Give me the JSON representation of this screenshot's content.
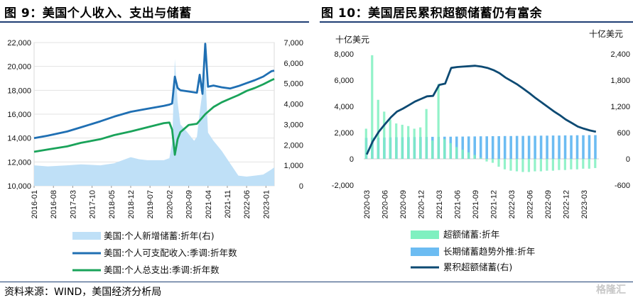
{
  "left": {
    "title": "图 9：美国个人收入、支出与储蓄",
    "left_ticks": [
      "22,000",
      "20,000",
      "18,000",
      "16,000",
      "14,000",
      "12,000",
      "10,000"
    ],
    "right_ticks": [
      "7,000",
      "6,000",
      "5,000",
      "4,000",
      "3,000",
      "2,000",
      "1,000",
      "0"
    ],
    "x_ticks": [
      "2016-01",
      "2016-08",
      "2017-03",
      "2017-10",
      "2018-05",
      "2018-12",
      "2019-07",
      "2020-02",
      "2020-09",
      "2021-04",
      "2021-11",
      "2022-06",
      "2023-01"
    ],
    "legend": [
      "美国:个人新增储蓄:折年(右)",
      "美国:个人可支配收入:季调:折年数",
      "美国:个人总支出:季调:折年数"
    ],
    "colors": {
      "savings": "#bfe0f7",
      "income": "#1f6fb3",
      "spending": "#1aa35a"
    }
  },
  "right": {
    "title": "图 10：美国居民累积超额储蓄仍有富余",
    "left_unit": "十亿美元",
    "right_unit": "十亿美元",
    "left_ticks": [
      "8,000",
      "6,000",
      "4,000",
      "2,000",
      "0",
      "-2,000"
    ],
    "right_ticks": [
      "2,400",
      "1,800",
      "1,200",
      "600",
      "0",
      "-600"
    ],
    "x_ticks": [
      "2020-03",
      "2020-06",
      "2020-09",
      "2020-12",
      "2021-03",
      "2021-06",
      "2021-09",
      "2021-12",
      "2022-03",
      "2022-06",
      "2022-09",
      "2022-12",
      "2023-03"
    ],
    "legend": [
      "超额储蓄:折年",
      "长期储蓄趋势外推:折年",
      "累积超额储蓄(右)"
    ],
    "colors": {
      "excess": "#7ff0c0",
      "trend": "#6cbcf2",
      "cum": "#0d4a73"
    }
  },
  "source": "资料来源：WIND，美国经济分析局",
  "watermark": "格隆汇",
  "chart_data": [
    {
      "type": "line",
      "title": "图 9：美国个人收入、支出与储蓄",
      "ylim": [
        10000,
        22000
      ],
      "y2lim": [
        0,
        7000
      ],
      "x_range": [
        "2016-01",
        "2023-04"
      ],
      "series": [
        {
          "name": "美国:个人新增储蓄:折年(右)",
          "type": "area",
          "axis": "right",
          "x": [
            "2016-01",
            "2016-06",
            "2017-01",
            "2017-06",
            "2018-01",
            "2018-06",
            "2018-12",
            "2019-03",
            "2019-06",
            "2019-12",
            "2020-02",
            "2020-03",
            "2020-04",
            "2020-05",
            "2020-06",
            "2020-08",
            "2020-11",
            "2020-12",
            "2021-01",
            "2021-03",
            "2021-04",
            "2021-06",
            "2021-09",
            "2021-12",
            "2022-03",
            "2022-06",
            "2022-09",
            "2022-12",
            "2023-03",
            "2023-04"
          ],
          "values": [
            1000,
            950,
            1000,
            1050,
            1000,
            1100,
            1400,
            1300,
            1250,
            1250,
            1350,
            2100,
            6200,
            4100,
            3000,
            2700,
            2200,
            2400,
            3600,
            5600,
            2600,
            2200,
            1700,
            1100,
            500,
            450,
            500,
            550,
            800,
            900
          ]
        },
        {
          "name": "美国:个人可支配收入:季调:折年数",
          "type": "line",
          "axis": "left",
          "x": [
            "2016-01",
            "2016-06",
            "2017-01",
            "2017-06",
            "2018-01",
            "2018-06",
            "2018-12",
            "2019-06",
            "2019-12",
            "2020-02",
            "2020-03",
            "2020-04",
            "2020-05",
            "2020-06",
            "2020-09",
            "2020-12",
            "2021-01",
            "2021-02",
            "2021-03",
            "2021-04",
            "2021-06",
            "2021-09",
            "2021-12",
            "2022-03",
            "2022-06",
            "2022-09",
            "2022-12",
            "2023-03",
            "2023-04"
          ],
          "values": [
            14000,
            14200,
            14550,
            14900,
            15400,
            15800,
            16200,
            16450,
            16700,
            16800,
            16900,
            19150,
            18200,
            18000,
            17900,
            17800,
            19300,
            17700,
            21900,
            18300,
            18400,
            18250,
            18150,
            18350,
            18600,
            18850,
            19150,
            19600,
            19650
          ]
        },
        {
          "name": "美国:个人总支出:季调:折年数",
          "type": "line",
          "axis": "left",
          "x": [
            "2016-01",
            "2016-06",
            "2017-01",
            "2017-06",
            "2018-01",
            "2018-06",
            "2018-12",
            "2019-06",
            "2019-12",
            "2020-02",
            "2020-03",
            "2020-04",
            "2020-05",
            "2020-06",
            "2020-09",
            "2020-12",
            "2021-03",
            "2021-06",
            "2021-09",
            "2021-12",
            "2022-03",
            "2022-06",
            "2022-09",
            "2022-12",
            "2023-03",
            "2023-04"
          ],
          "values": [
            12850,
            13050,
            13300,
            13600,
            13900,
            14250,
            14550,
            14900,
            15250,
            15300,
            14700,
            12600,
            13900,
            14500,
            15100,
            15200,
            16000,
            16600,
            17000,
            17300,
            17600,
            17950,
            18200,
            18500,
            18850,
            18950
          ]
        }
      ]
    },
    {
      "type": "bar",
      "title": "图 10：美国居民累积超额储蓄仍有富余",
      "ylabel": "十亿美元",
      "y2label": "十亿美元",
      "ylim": [
        -2000,
        8000
      ],
      "y2lim": [
        -600,
        2400
      ],
      "categories": [
        "2020-03",
        "2020-04",
        "2020-05",
        "2020-06",
        "2020-07",
        "2020-08",
        "2020-09",
        "2020-10",
        "2020-11",
        "2020-12",
        "2021-01",
        "2021-02",
        "2021-03",
        "2021-04",
        "2021-05",
        "2021-06",
        "2021-07",
        "2021-08",
        "2021-09",
        "2021-10",
        "2021-11",
        "2021-12",
        "2022-01",
        "2022-02",
        "2022-03",
        "2022-04",
        "2022-05",
        "2022-06",
        "2022-07",
        "2022-08",
        "2022-09",
        "2022-10",
        "2022-11",
        "2022-12",
        "2023-01",
        "2023-02",
        "2023-03",
        "2023-04",
        "2023-05"
      ],
      "series": [
        {
          "name": "超额储蓄:折年",
          "type": "bar",
          "values": [
            2300,
            7900,
            4500,
            3600,
            3000,
            2700,
            2600,
            2500,
            2300,
            2400,
            3800,
            1400,
            5700,
            1500,
            1200,
            900,
            700,
            500,
            300,
            100,
            -200,
            -300,
            -600,
            -800,
            -900,
            -950,
            -1000,
            -1000,
            -950,
            -950,
            -900,
            -900,
            -850,
            -850,
            -800,
            -800,
            -750,
            -750,
            -700
          ]
        },
        {
          "name": "长期储蓄趋势外推:折年",
          "type": "bar",
          "values": [
            1600,
            1620,
            1620,
            1630,
            1640,
            1650,
            1650,
            1660,
            1660,
            1670,
            1670,
            1680,
            1680,
            1690,
            1690,
            1700,
            1700,
            1710,
            1710,
            1720,
            1720,
            1730,
            1730,
            1740,
            1740,
            1750,
            1750,
            1760,
            1760,
            1770,
            1770,
            1780,
            1780,
            1790,
            1790,
            1800,
            1800,
            1810,
            1810
          ]
        },
        {
          "name": "累积超额储蓄(右)",
          "type": "line",
          "axis": "right",
          "values": [
            100,
            400,
            620,
            790,
            950,
            1080,
            1150,
            1230,
            1310,
            1370,
            1430,
            1440,
            1690,
            1720,
            2080,
            2100,
            2110,
            2120,
            2130,
            2110,
            2080,
            2030,
            1960,
            1860,
            1780,
            1700,
            1600,
            1500,
            1390,
            1290,
            1190,
            1090,
            1000,
            900,
            820,
            740,
            690,
            650,
            620
          ]
        }
      ]
    }
  ]
}
